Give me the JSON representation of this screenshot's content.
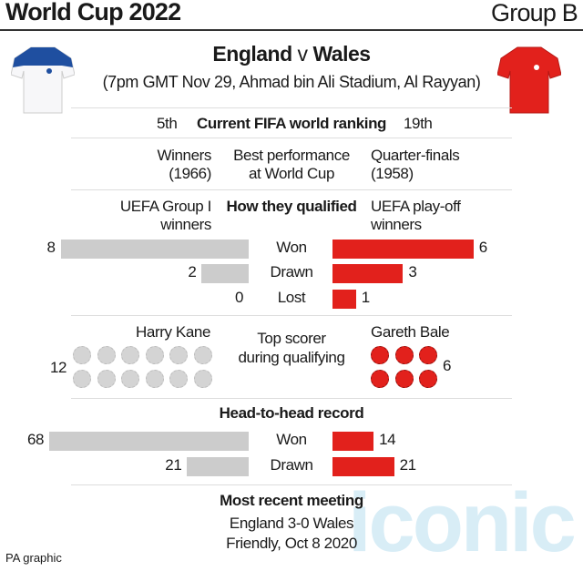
{
  "header": {
    "title": "World Cup 2022",
    "group": "Group B"
  },
  "match": {
    "home": "England",
    "sep": "v",
    "away": "Wales",
    "details": "(7pm GMT Nov 29, Ahmad bin Ali Stadium, Al Rayyan)"
  },
  "ranking": {
    "home": "5th",
    "label": "Current FIFA world ranking",
    "away": "19th"
  },
  "best": {
    "home": [
      "Winners",
      "(1966)"
    ],
    "label": [
      "Best performance",
      "at World Cup"
    ],
    "away": [
      "Quarter-finals",
      "(1958)"
    ]
  },
  "qualified": {
    "home": [
      "UEFA Group I",
      "winners"
    ],
    "label": "How they qualified",
    "away": [
      "UEFA play-off",
      "winners"
    ]
  },
  "scorer": {
    "home_name": "Harry Kane",
    "home_goals": "12",
    "label": [
      "Top scorer",
      "during qualifying"
    ],
    "away_name": "Gareth Bale",
    "away_goals": "6"
  },
  "h2h_title": "Head-to-head record",
  "recent": {
    "title": "Most recent meeting",
    "score": "England 3-0 Wales",
    "detail": "Friendly, Oct 8 2020"
  },
  "footer": "PA graphic",
  "watermark": "iconic",
  "colors": {
    "home": "#cccccc",
    "away": "#e2211c",
    "home_ball": "#d4d4d4"
  },
  "chart_data": [
    {
      "type": "bar",
      "title": "How they qualified",
      "categories": [
        "Won",
        "Drawn",
        "Lost"
      ],
      "series": [
        {
          "name": "England",
          "values": [
            8,
            2,
            0
          ]
        },
        {
          "name": "Wales",
          "values": [
            6,
            3,
            1
          ]
        }
      ]
    },
    {
      "type": "bar",
      "title": "Head-to-head record",
      "categories": [
        "Won",
        "Drawn"
      ],
      "series": [
        {
          "name": "England",
          "values": [
            68,
            21
          ]
        },
        {
          "name": "Wales",
          "values": [
            14,
            21
          ]
        }
      ]
    }
  ]
}
